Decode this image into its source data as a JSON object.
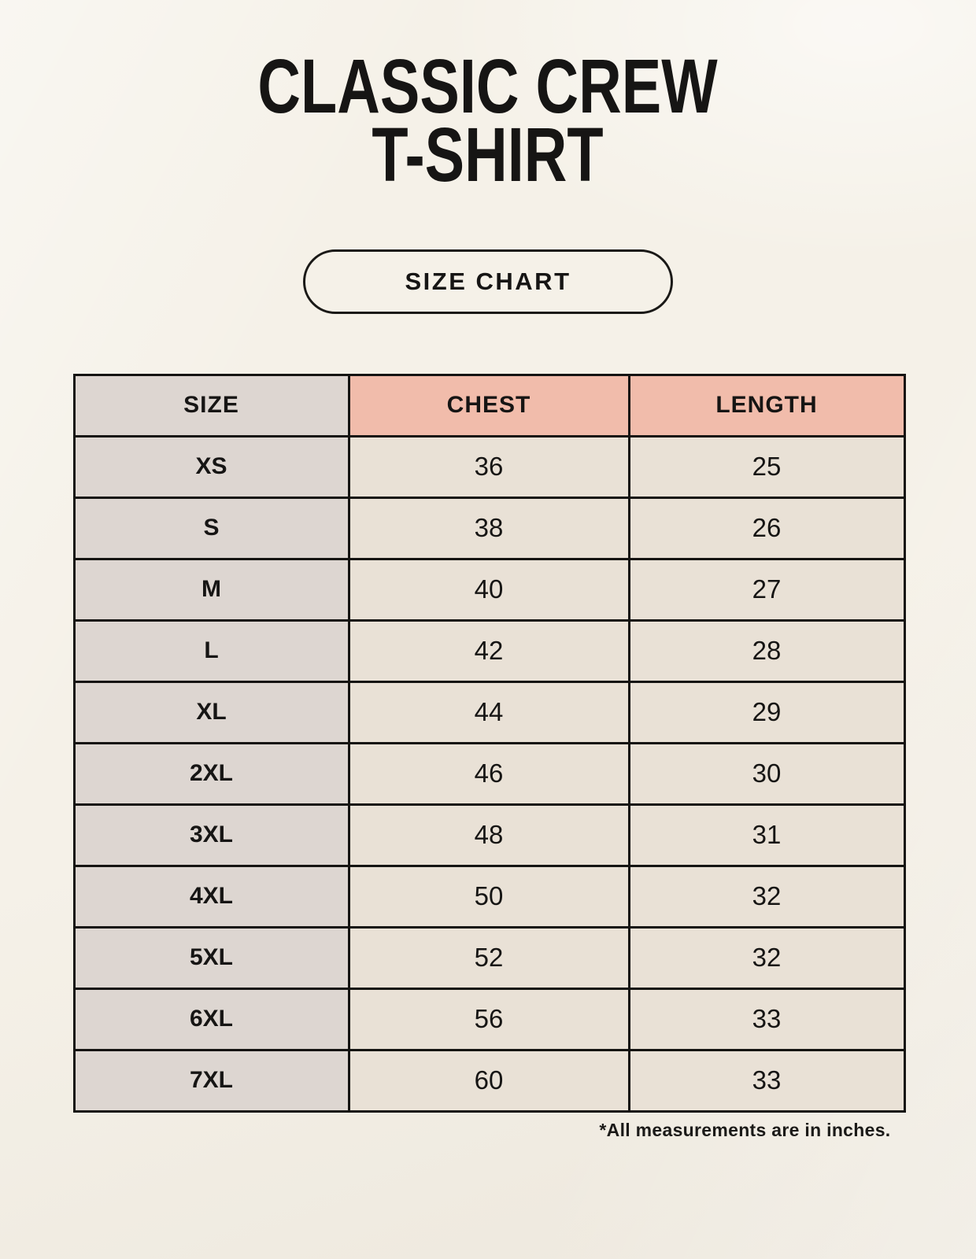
{
  "header": {
    "title_line1": "CLASSIC CREW",
    "title_line2": "T-SHIRT",
    "button_label": "SIZE CHART"
  },
  "table": {
    "columns": [
      "SIZE",
      "CHEST",
      "LENGTH"
    ],
    "rows": [
      {
        "size": "XS",
        "chest": "36",
        "length": "25"
      },
      {
        "size": "S",
        "chest": "38",
        "length": "26"
      },
      {
        "size": "M",
        "chest": "40",
        "length": "27"
      },
      {
        "size": "L",
        "chest": "42",
        "length": "28"
      },
      {
        "size": "XL",
        "chest": "44",
        "length": "29"
      },
      {
        "size": "2XL",
        "chest": "46",
        "length": "30"
      },
      {
        "size": "3XL",
        "chest": "48",
        "length": "31"
      },
      {
        "size": "4XL",
        "chest": "50",
        "length": "32"
      },
      {
        "size": "5XL",
        "chest": "52",
        "length": "32"
      },
      {
        "size": "6XL",
        "chest": "56",
        "length": "33"
      },
      {
        "size": "7XL",
        "chest": "60",
        "length": "33"
      }
    ]
  },
  "footnote": "*All measurements are in inches.",
  "colors": {
    "page_background": "#f5f1e8",
    "size_column_background": "#ddd6d1",
    "measure_header_background": "#f1bcab",
    "value_cell_background": "#e9e1d6",
    "border": "#151412",
    "text": "#161514"
  },
  "chart_data": {
    "type": "table",
    "title": "CLASSIC CREW T-SHIRT",
    "columns": [
      "SIZE",
      "CHEST",
      "LENGTH"
    ],
    "rows": [
      [
        "XS",
        36,
        25
      ],
      [
        "S",
        38,
        26
      ],
      [
        "M",
        40,
        27
      ],
      [
        "L",
        42,
        28
      ],
      [
        "XL",
        44,
        29
      ],
      [
        "2XL",
        46,
        30
      ],
      [
        "3XL",
        48,
        31
      ],
      [
        "4XL",
        50,
        32
      ],
      [
        "5XL",
        52,
        32
      ],
      [
        "6XL",
        56,
        33
      ],
      [
        "7XL",
        60,
        33
      ]
    ],
    "units": "inches"
  }
}
